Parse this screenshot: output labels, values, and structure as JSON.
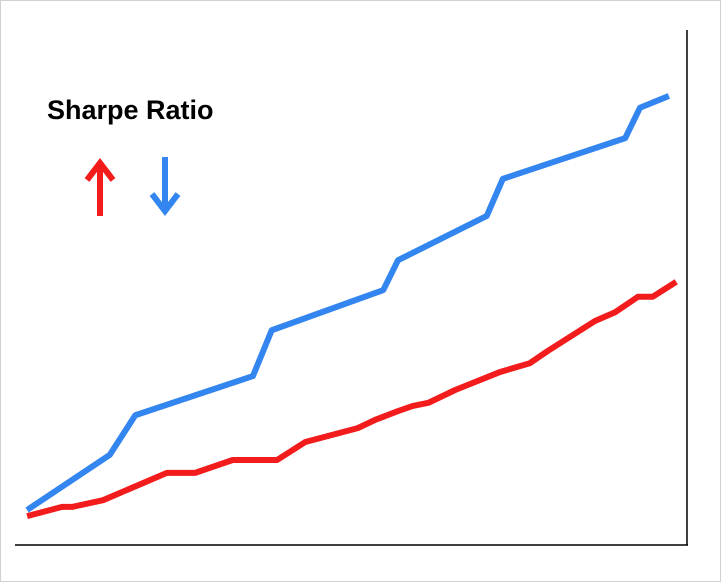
{
  "chart_data": {
    "type": "line",
    "title": "Sharpe Ratio",
    "xlim": [
      0,
      100
    ],
    "ylim": [
      0,
      100
    ],
    "series": [
      {
        "color": "#3385f0",
        "x": [
          1.8,
          14.1,
          17.9,
          35.4,
          38.2,
          54.8,
          57.0,
          70.2,
          72.6,
          90.8,
          93.0,
          97.3
        ],
        "values": [
          6.8,
          17.5,
          25.2,
          32.8,
          41.7,
          49.5,
          55.3,
          63.9,
          71.1,
          79.0,
          84.9,
          87.2
        ]
      },
      {
        "color": "#f21c1c",
        "x": [
          1.8,
          7.0,
          8.5,
          13.1,
          22.6,
          26.8,
          32.4,
          39.0,
          43.2,
          51.0,
          53.6,
          57.0,
          59.2,
          61.5,
          65.5,
          72.2,
          76.6,
          79.3,
          86.3,
          89.3,
          92.7,
          94.9,
          98.4
        ],
        "values": [
          5.6,
          7.4,
          7.4,
          8.7,
          14.0,
          14.0,
          16.5,
          16.5,
          20.0,
          22.7,
          24.3,
          26.0,
          27.0,
          27.6,
          30.1,
          33.6,
          35.3,
          37.7,
          43.5,
          45.2,
          48.2,
          48.2,
          51.1
        ]
      }
    ]
  }
}
